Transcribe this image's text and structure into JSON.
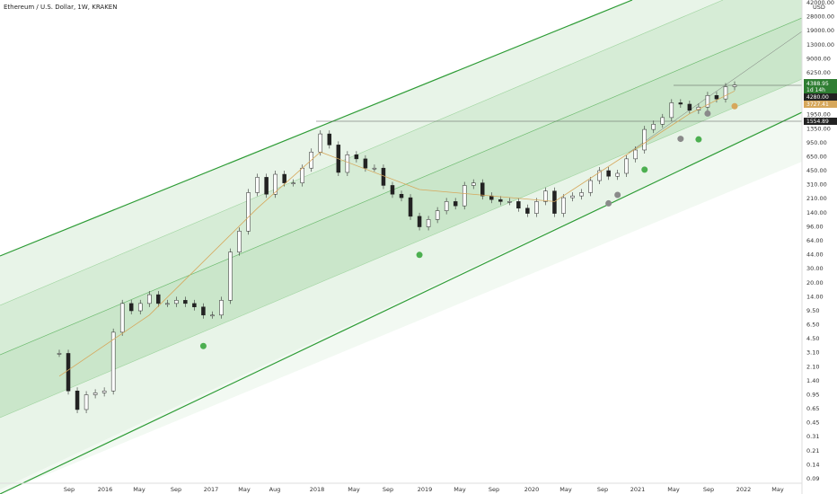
{
  "chart_data": {
    "type": "candlestick",
    "title": "Ethereum / U.S. Dollar, 1W, KRAKEN",
    "y_scale": "log",
    "y_unit": "USD",
    "x_ticks": [
      "Sep",
      "2016",
      "May",
      "Sep",
      "2017",
      "May",
      "Aug",
      "2018",
      "May",
      "Sep",
      "2019",
      "May",
      "Sep",
      "2020",
      "May",
      "Sep",
      "2021",
      "May",
      "Sep",
      "2022",
      "May"
    ],
    "y_ticks": [
      "42000.00",
      "28000.00",
      "19000.00",
      "13000.00",
      "9000.00",
      "6250.00",
      "4250.00",
      "2900.00",
      "1950.00",
      "1350.00",
      "950.00",
      "650.00",
      "450.00",
      "310.00",
      "210.00",
      "140.00",
      "96.00",
      "64.00",
      "44.00",
      "30.00",
      "20.00",
      "14.00",
      "9.50",
      "6.50",
      "4.50",
      "3.10",
      "2.10",
      "1.40",
      "0.95",
      "0.65",
      "0.45",
      "0.31",
      "0.21",
      "0.14",
      "0.09"
    ],
    "price_tags": [
      {
        "label": "4388.95",
        "sub": "1d 14h",
        "color": "#2e7d32"
      },
      {
        "label": "4280.00",
        "color": "#222222"
      },
      {
        "label": "3727.41",
        "color": "#d6a75b"
      },
      {
        "label": "1554.89",
        "color": "#222222"
      }
    ],
    "horizontal_levels": [
      4280,
      1554.89
    ],
    "series": [
      {
        "x": [
          "2015-08",
          "2015-09",
          "2015-10",
          "2015-11",
          "2015-12",
          "2016-01",
          "2016-02",
          "2016-03",
          "2016-04",
          "2016-05",
          "2016-06",
          "2016-07",
          "2016-08",
          "2016-09",
          "2016-10",
          "2016-11",
          "2016-12",
          "2017-01",
          "2017-02",
          "2017-03",
          "2017-04",
          "2017-05",
          "2017-06",
          "2017-07",
          "2017-08",
          "2017-09",
          "2017-10",
          "2017-11",
          "2017-12",
          "2018-01",
          "2018-02",
          "2018-03",
          "2018-04",
          "2018-05",
          "2018-06",
          "2018-07",
          "2018-08",
          "2018-09",
          "2018-10",
          "2018-11",
          "2018-12",
          "2019-01",
          "2019-02",
          "2019-03",
          "2019-04",
          "2019-05",
          "2019-06",
          "2019-07",
          "2019-08",
          "2019-09",
          "2019-10",
          "2019-11",
          "2019-12",
          "2020-01",
          "2020-02",
          "2020-03",
          "2020-04",
          "2020-05",
          "2020-06",
          "2020-07",
          "2020-08",
          "2020-09",
          "2020-10",
          "2020-11",
          "2020-12",
          "2021-01",
          "2021-02",
          "2021-03",
          "2021-04",
          "2021-05",
          "2021-06",
          "2021-07",
          "2021-08",
          "2021-09",
          "2021-10",
          "2021-11"
        ],
        "y": [
          2.8,
          1.0,
          0.6,
          0.9,
          0.95,
          1.0,
          5,
          11,
          9,
          11,
          14,
          11,
          11,
          12,
          11,
          10,
          8,
          8,
          12,
          45,
          80,
          230,
          350,
          220,
          380,
          300,
          300,
          450,
          700,
          1150,
          850,
          400,
          650,
          580,
          450,
          450,
          280,
          220,
          200,
          120,
          90,
          110,
          140,
          180,
          160,
          280,
          300,
          210,
          190,
          180,
          180,
          150,
          130,
          180,
          240,
          130,
          200,
          210,
          230,
          320,
          420,
          360,
          390,
          580,
          740,
          1300,
          1500,
          1800,
          2700,
          2600,
          2200,
          2400,
          3300,
          3000,
          4200,
          4400
        ]
      },
      {
        "x": [
          "2015-08",
          "2016-06",
          "2017-06",
          "2018-01",
          "2018-12",
          "2020-03",
          "2021-06",
          "2021-11"
        ],
        "y": [
          1.5,
          8,
          150,
          700,
          250,
          180,
          2000,
          3727.41
        ]
      }
    ],
    "channel": {
      "slope_per_year": "log",
      "color": "#2e9c36"
    },
    "markers": [
      {
        "x": "2016-12",
        "y": 4.6,
        "color": "#4caf50"
      },
      {
        "x": "2018-12",
        "y": 56,
        "color": "#4caf50"
      },
      {
        "x": "2020-09",
        "y": 230,
        "color": "#8a8a8a"
      },
      {
        "x": "2020-10",
        "y": 290,
        "color": "#8a8a8a"
      },
      {
        "x": "2021-01",
        "y": 580,
        "color": "#4caf50"
      },
      {
        "x": "2021-05",
        "y": 1350,
        "color": "#8a8a8a"
      },
      {
        "x": "2021-07",
        "y": 1330,
        "color": "#4caf50"
      },
      {
        "x": "2021-08",
        "y": 2700,
        "color": "#8a8a8a"
      },
      {
        "x": "2021-11",
        "y": 3300,
        "color": "#d6a75b"
      }
    ]
  }
}
